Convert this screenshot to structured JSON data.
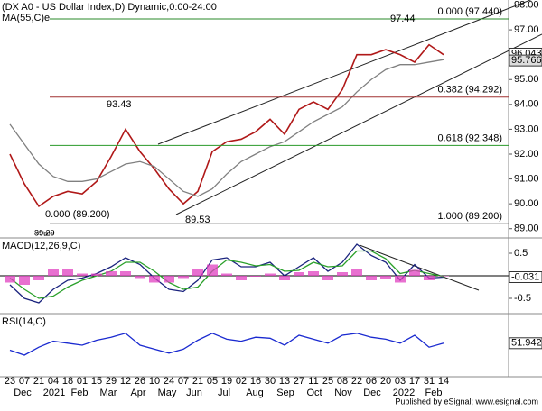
{
  "chart_data": [
    {
      "type": "line",
      "title": "(DX A0 - US Dollar Index,D) Dynamic,0:00-24:00",
      "subtitle": "MA(55,C)e",
      "watermark": "eSignal",
      "categories": [
        "23",
        "07",
        "21",
        "04",
        "18",
        "01",
        "15",
        "29",
        "12",
        "26",
        "10",
        "24",
        "07",
        "21",
        "05",
        "19",
        "02",
        "16",
        "30",
        "13",
        "27",
        "11",
        "25",
        "08",
        "22",
        "06",
        "20",
        "03",
        "17",
        "31",
        "14"
      ],
      "months": [
        "Dec",
        "2021",
        "Feb",
        "Mar",
        "Apr",
        "May",
        "Jun",
        "Jul",
        "Aug",
        "Sep",
        "Oct",
        "Nov",
        "Dec",
        "2022",
        "Feb"
      ],
      "ylim": [
        88.7,
        98.2
      ],
      "yticks": [
        {
          "value": 98,
          "label": "98.00"
        },
        {
          "value": 97,
          "label": "97.00"
        },
        {
          "value": 96,
          "label": "96.00"
        },
        {
          "value": 95,
          "label": "95.00"
        },
        {
          "value": 94,
          "label": "94.00"
        },
        {
          "value": 93,
          "label": "93.00"
        },
        {
          "value": 92,
          "label": "92.00"
        },
        {
          "value": 91,
          "label": "91.00"
        },
        {
          "value": 90,
          "label": "90.00"
        },
        {
          "value": 89,
          "label": "89.00"
        }
      ],
      "series": [
        {
          "name": "DX A0",
          "color": "#b01818",
          "values": [
            92.0,
            90.8,
            89.9,
            90.3,
            90.5,
            90.4,
            90.9,
            91.9,
            93.0,
            92.1,
            91.4,
            90.6,
            90.0,
            90.5,
            92.1,
            92.5,
            92.6,
            92.9,
            93.4,
            92.8,
            93.8,
            94.1,
            93.8,
            94.6,
            96.0,
            96.0,
            96.2,
            96.0,
            95.7,
            96.4,
            96.0
          ]
        },
        {
          "name": "MA(55,C)",
          "color": "#808080",
          "values": [
            93.2,
            92.4,
            91.6,
            91.1,
            90.9,
            90.9,
            91.0,
            91.3,
            91.6,
            91.7,
            91.5,
            91.0,
            90.5,
            90.3,
            90.6,
            91.2,
            91.7,
            92.0,
            92.3,
            92.5,
            92.9,
            93.3,
            93.6,
            93.9,
            94.5,
            95.0,
            95.4,
            95.6,
            95.6,
            95.7,
            95.8
          ]
        }
      ],
      "levels": [
        {
          "value": 97.44,
          "label": "0.000 (97.440)",
          "color": "#2a8a2a"
        },
        {
          "value": 94.292,
          "label": "0.382 (94.292)",
          "color": "#a03030"
        },
        {
          "value": 92.348,
          "label": "0.618 (92.348)",
          "color": "#2a9a2a"
        },
        {
          "value": 89.2,
          "label": "1.000 (89.200)",
          "color": "#444444"
        }
      ],
      "annotations": [
        "97.44",
        "93.43",
        "89.53",
        "0.000 (89.200)",
        "89.20"
      ],
      "price_tags": [
        {
          "value": 96.043,
          "label": "96.043"
        },
        {
          "value": 95.766,
          "label": "95.766"
        }
      ]
    },
    {
      "type": "line",
      "title": "MACD(12,26,9,C)",
      "ylim": [
        -0.8,
        0.8
      ],
      "yticks": [
        0.5,
        -0.5
      ],
      "value_label": "-0.031",
      "series": [
        {
          "name": "MACD",
          "color": "#1a237e",
          "values": [
            -0.2,
            -0.5,
            -0.6,
            -0.3,
            -0.1,
            -0.05,
            0.05,
            0.2,
            0.4,
            0.25,
            -0.05,
            -0.3,
            -0.35,
            -0.1,
            0.35,
            0.4,
            0.2,
            0.2,
            0.3,
            0.0,
            0.2,
            0.4,
            0.1,
            0.3,
            0.7,
            0.45,
            0.3,
            -0.1,
            0.25,
            -0.05,
            -0.03
          ]
        },
        {
          "name": "Signal",
          "color": "#2aa02a",
          "values": [
            -0.05,
            -0.3,
            -0.5,
            -0.45,
            -0.25,
            -0.1,
            0.0,
            0.1,
            0.3,
            0.3,
            0.1,
            -0.15,
            -0.3,
            -0.25,
            0.1,
            0.35,
            0.3,
            0.22,
            0.25,
            0.1,
            0.12,
            0.3,
            0.2,
            0.22,
            0.55,
            0.55,
            0.38,
            0.05,
            0.12,
            0.05,
            -0.02
          ]
        },
        {
          "name": "Histogram",
          "color": "#e040c0",
          "style": "bar",
          "values": [
            -0.15,
            -0.2,
            -0.1,
            0.15,
            0.15,
            0.05,
            0.05,
            0.1,
            0.1,
            -0.05,
            -0.15,
            -0.15,
            -0.05,
            0.15,
            0.25,
            0.05,
            -0.1,
            -0.02,
            0.05,
            -0.1,
            0.08,
            0.1,
            -0.1,
            0.08,
            0.15,
            -0.1,
            -0.08,
            -0.15,
            0.13,
            -0.1,
            -0.01
          ]
        }
      ]
    },
    {
      "type": "line",
      "title": "RSI(14,C)",
      "ylim": [
        20,
        80
      ],
      "value_label": "51.942",
      "series": [
        {
          "name": "RSI",
          "color": "#1a2ad0",
          "values": [
            45,
            40,
            48,
            54,
            52,
            50,
            55,
            58,
            62,
            50,
            46,
            42,
            46,
            55,
            62,
            56,
            54,
            58,
            57,
            50,
            60,
            56,
            52,
            60,
            62,
            58,
            56,
            52,
            60,
            48,
            52
          ]
        }
      ]
    }
  ],
  "footer": "Published by eSignal; www.esignal.com"
}
